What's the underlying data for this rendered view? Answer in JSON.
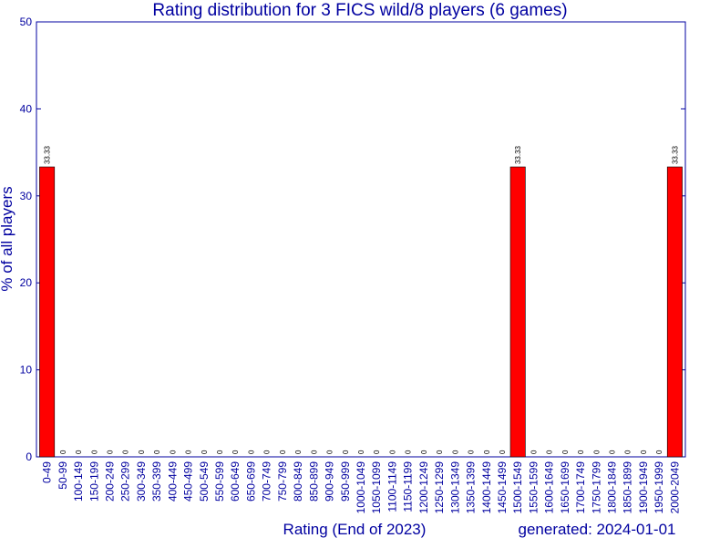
{
  "chart_data": {
    "type": "bar",
    "title": "Rating distribution for 3 FICS wild/8 players (6 games)",
    "xlabel": "Rating (End of 2023)",
    "ylabel": "% of all players",
    "footer": "generated: 2024-01-01",
    "ylim": [
      0,
      50
    ],
    "yticks": [
      0,
      10,
      20,
      30,
      40,
      50
    ],
    "grid": false,
    "bar_color": "#ff0000",
    "axis_color": "#0000a0",
    "categories": [
      "0-49",
      "50-99",
      "100-149",
      "150-199",
      "200-249",
      "250-299",
      "300-349",
      "350-399",
      "400-449",
      "450-499",
      "500-549",
      "550-599",
      "600-649",
      "650-699",
      "700-749",
      "750-799",
      "800-849",
      "850-899",
      "900-949",
      "950-999",
      "1000-1049",
      "1050-1099",
      "1100-1149",
      "1150-1199",
      "1200-1249",
      "1250-1299",
      "1300-1349",
      "1350-1399",
      "1400-1449",
      "1450-1499",
      "1500-1549",
      "1550-1599",
      "1600-1649",
      "1650-1699",
      "1700-1749",
      "1750-1799",
      "1800-1849",
      "1850-1899",
      "1900-1949",
      "1950-1999",
      "2000-2049"
    ],
    "values": [
      33.33,
      0,
      0,
      0,
      0,
      0,
      0,
      0,
      0,
      0,
      0,
      0,
      0,
      0,
      0,
      0,
      0,
      0,
      0,
      0,
      0,
      0,
      0,
      0,
      0,
      0,
      0,
      0,
      0,
      0,
      33.33,
      0,
      0,
      0,
      0,
      0,
      0,
      0,
      0,
      0,
      33.33
    ],
    "value_labels": [
      "33.33",
      "0",
      "0",
      "0",
      "0",
      "0",
      "0",
      "0",
      "0",
      "0",
      "0",
      "0",
      "0",
      "0",
      "0",
      "0",
      "0",
      "0",
      "0",
      "0",
      "0",
      "0",
      "0",
      "0",
      "0",
      "0",
      "0",
      "0",
      "0",
      "0",
      "33.33",
      "0",
      "0",
      "0",
      "0",
      "0",
      "0",
      "0",
      "0",
      "0",
      "33.33"
    ]
  }
}
